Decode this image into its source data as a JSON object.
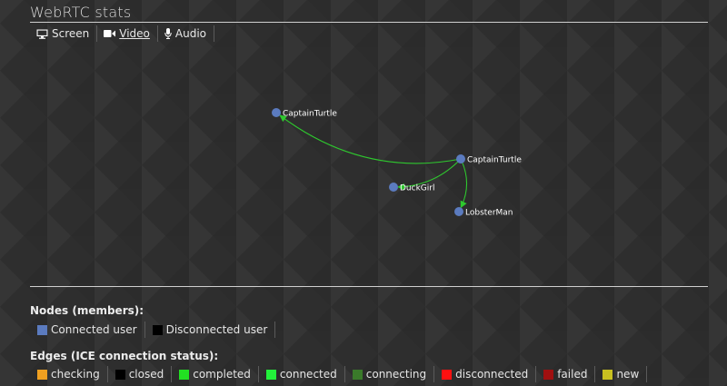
{
  "header": {
    "title": "WebRTC stats"
  },
  "tabs": [
    {
      "label": "Screen",
      "icon": "monitor-icon",
      "active": false
    },
    {
      "label": "Video",
      "icon": "video-camera-icon",
      "active": true
    },
    {
      "label": "Audio",
      "icon": "microphone-icon",
      "active": false
    }
  ],
  "graph": {
    "nodes": [
      {
        "label": "CaptainTurtle",
        "status": "connected",
        "color": "#5b7bbf"
      },
      {
        "label": "CaptainTurtle",
        "status": "connected",
        "color": "#5b7bbf"
      },
      {
        "label": "DuckGirl",
        "status": "connected",
        "color": "#5b7bbf"
      },
      {
        "label": "LobsterMan",
        "status": "connected",
        "color": "#5b7bbf"
      }
    ],
    "edges": [
      {
        "from": 1,
        "to": 0,
        "status": "completed",
        "color": "#2ec82e"
      },
      {
        "from": 1,
        "to": 2,
        "status": "completed",
        "color": "#2ec82e"
      },
      {
        "from": 1,
        "to": 3,
        "status": "completed",
        "color": "#2ec82e"
      }
    ]
  },
  "legend": {
    "nodes_heading": "Nodes (members):",
    "nodes": [
      {
        "label": "Connected user",
        "color": "#5b7bbf"
      },
      {
        "label": "Disconnected user",
        "color": "#000000"
      }
    ],
    "edges_heading": "Edges (ICE connection status):",
    "edges": [
      {
        "label": "checking",
        "color": "#f0a020"
      },
      {
        "label": "closed",
        "color": "#000000"
      },
      {
        "label": "completed",
        "color": "#22e022"
      },
      {
        "label": "connected",
        "color": "#22f03a"
      },
      {
        "label": "connecting",
        "color": "#3a7a2a"
      },
      {
        "label": "disconnected",
        "color": "#ff1010"
      },
      {
        "label": "failed",
        "color": "#a01010"
      },
      {
        "label": "new",
        "color": "#c8c020"
      }
    ]
  }
}
